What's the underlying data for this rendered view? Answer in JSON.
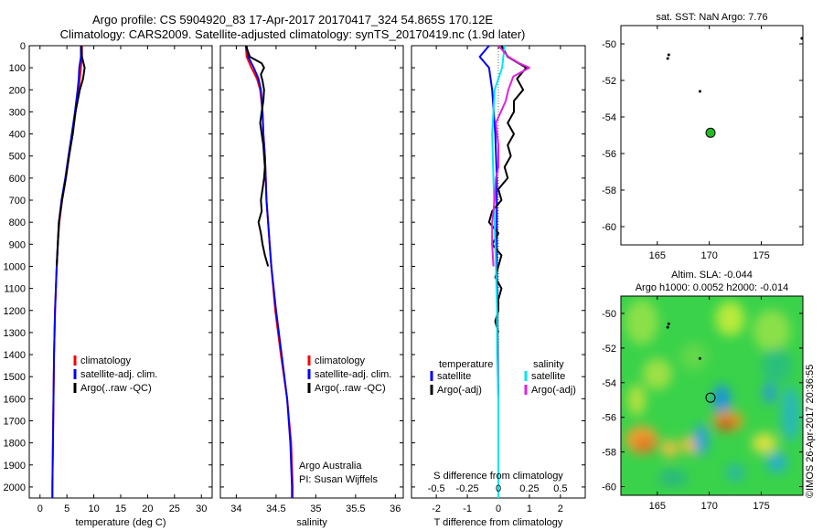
{
  "header": {
    "line1": "Argo profile: CS 5904920_83 17-Apr-2017 20170417_324 54.865S 170.12E",
    "line2": "Climatology: CARS2009. Satellite-adjusted climatology: synTS_20170419.nc (1.9d later)"
  },
  "colors": {
    "climatology": "#ff0000",
    "satellite": "#0000ff",
    "argo": "#000000",
    "salinity_satellite": "#00e5ee",
    "salinity_argo": "#e020e0",
    "float_marker": "#22bb22"
  },
  "chart_data": [
    {
      "type": "line",
      "id": "temperature",
      "xlabel": "temperature (deg C)",
      "xlim": [
        -2,
        32
      ],
      "ylim": [
        2050,
        0
      ],
      "xticks": [
        0,
        5,
        10,
        15,
        20,
        25,
        30
      ],
      "yticks": [
        0,
        100,
        200,
        300,
        400,
        500,
        600,
        700,
        800,
        900,
        1000,
        1100,
        1200,
        1300,
        1400,
        1500,
        1600,
        1700,
        1800,
        1900,
        2000
      ],
      "legend": [
        "climatology",
        "satellite-adj. clim.",
        "Argo(..raw -QC)"
      ],
      "series": [
        {
          "name": "climatology",
          "color": "#ff0000",
          "depth": [
            0,
            50,
            100,
            150,
            200,
            300,
            400,
            500,
            600,
            700,
            800,
            900,
            1000,
            1200,
            1400,
            1600,
            1800,
            2000,
            2050
          ],
          "values": [
            7.8,
            7.8,
            7.6,
            7.4,
            7.2,
            6.6,
            6.0,
            5.4,
            4.8,
            4.1,
            3.6,
            3.3,
            3.1,
            2.8,
            2.6,
            2.5,
            2.4,
            2.3,
            2.3
          ]
        },
        {
          "name": "satellite-adj. clim.",
          "color": "#0000ff",
          "depth": [
            0,
            50,
            100,
            150,
            200,
            300,
            400,
            500,
            600,
            700,
            800,
            900,
            1000,
            1200,
            1400,
            1600,
            1800,
            2000,
            2050
          ],
          "values": [
            7.6,
            7.6,
            7.3,
            7.2,
            7.0,
            6.5,
            5.9,
            5.3,
            4.7,
            4.0,
            3.5,
            3.3,
            3.1,
            2.8,
            2.6,
            2.5,
            2.4,
            2.3,
            2.3
          ]
        },
        {
          "name": "Argo(..raw -QC)",
          "color": "#000000",
          "depth": [
            0,
            50,
            100,
            150,
            200,
            250,
            300,
            400,
            500,
            600,
            700,
            800,
            900,
            1000
          ],
          "values": [
            7.7,
            7.8,
            8.3,
            8.0,
            7.4,
            7.0,
            6.6,
            6.1,
            5.4,
            4.8,
            4.1,
            3.5,
            3.3,
            3.1
          ]
        }
      ]
    },
    {
      "type": "line",
      "id": "salinity",
      "xlabel": "salinity",
      "xlim": [
        33.8,
        36.1
      ],
      "ylim": [
        2050,
        0
      ],
      "xticks": [
        34,
        34.5,
        35,
        35.5,
        36
      ],
      "legend": [
        "climatology",
        "satellite-adj. clim.",
        "Argo(..raw -QC)"
      ],
      "annotation": [
        "Argo Australia",
        "PI: Susan Wijffels"
      ],
      "series": [
        {
          "name": "climatology",
          "color": "#ff0000",
          "depth": [
            0,
            50,
            100,
            150,
            200,
            300,
            400,
            500,
            600,
            700,
            800,
            900,
            1000,
            1200,
            1400,
            1600,
            1800,
            2000,
            2050
          ],
          "values": [
            34.12,
            34.13,
            34.19,
            34.26,
            34.3,
            34.33,
            34.34,
            34.36,
            34.37,
            34.38,
            34.4,
            34.42,
            34.44,
            34.49,
            34.56,
            34.64,
            34.69,
            34.71,
            34.71
          ]
        },
        {
          "name": "satellite-adj. clim.",
          "color": "#0000ff",
          "depth": [
            0,
            50,
            100,
            150,
            200,
            300,
            400,
            500,
            600,
            700,
            800,
            900,
            1000,
            1200,
            1400,
            1600,
            1800,
            2000,
            2050
          ],
          "values": [
            34.13,
            34.15,
            34.22,
            34.28,
            34.31,
            34.33,
            34.34,
            34.36,
            34.37,
            34.38,
            34.4,
            34.42,
            34.44,
            34.5,
            34.57,
            34.64,
            34.68,
            34.7,
            34.7
          ]
        },
        {
          "name": "Argo(..raw -QC)",
          "color": "#000000",
          "depth": [
            0,
            50,
            80,
            100,
            130,
            160,
            200,
            250,
            300,
            350,
            400,
            450,
            500,
            550,
            600,
            650,
            700,
            750,
            800,
            850,
            900,
            950,
            1000
          ],
          "values": [
            34.12,
            34.17,
            34.32,
            34.35,
            34.31,
            34.33,
            34.35,
            34.34,
            34.32,
            34.3,
            34.32,
            34.34,
            34.35,
            34.36,
            34.35,
            34.33,
            34.31,
            34.32,
            34.28,
            34.31,
            34.33,
            34.36,
            34.4
          ]
        }
      ]
    },
    {
      "type": "line",
      "id": "difference",
      "xlabel": "T difference from climatology",
      "xlabel_top": "S difference from climatology",
      "xlim": [
        -2.8,
        2.8
      ],
      "ylim": [
        2050,
        0
      ],
      "xticks": [
        -2,
        -1,
        0,
        1,
        2
      ],
      "xticks_salinity": [
        "-0.5",
        "-0.25",
        "0",
        "0.25",
        "0.5"
      ],
      "legend_titles": [
        "temperature",
        "salinity"
      ],
      "legend": [
        "satellite",
        "Argo(-adj)",
        "satellite",
        "Argo(-adj)"
      ],
      "series": [
        {
          "name": "satellite",
          "group": "temperature",
          "color": "#0000ff",
          "depth": [
            0,
            50,
            100,
            200,
            300,
            400,
            600,
            800,
            1000,
            1200,
            1400,
            1600,
            1800,
            2000,
            2050
          ],
          "values": [
            -0.3,
            -0.6,
            -0.3,
            -0.2,
            -0.15,
            -0.1,
            -0.05,
            -0.05,
            -0.05,
            -0.03,
            -0.02,
            0,
            0,
            0,
            0
          ]
        },
        {
          "name": "Argo(-adj)",
          "group": "temperature",
          "color": "#000000",
          "depth": [
            0,
            50,
            100,
            150,
            200,
            250,
            300,
            350,
            400,
            450,
            500,
            550,
            600,
            650,
            700,
            750,
            800,
            850,
            900,
            950,
            1000,
            1050,
            1100,
            1150,
            1200,
            1250,
            1300
          ],
          "values": [
            0.1,
            0.3,
            0.9,
            0.6,
            0.8,
            0.5,
            0.5,
            0.3,
            0.5,
            0.3,
            0.4,
            0.2,
            0.3,
            0.0,
            0.1,
            -0.2,
            -0.3,
            0.0,
            -0.2,
            0.1,
            0.0,
            -0.1,
            0.1,
            0.0,
            0.0,
            -0.1,
            0.0
          ]
        },
        {
          "name": "satellite",
          "group": "salinity",
          "color": "#00e5ee",
          "depth": [
            0,
            100,
            200,
            300,
            400,
            600,
            800,
            1000,
            1200,
            1400,
            1600,
            1800,
            2000,
            2050
          ],
          "values": [
            0.05,
            0.03,
            -0.03,
            -0.04,
            -0.05,
            -0.04,
            -0.03,
            -0.02,
            -0.01,
            -0.01,
            0,
            0,
            0,
            0
          ]
        },
        {
          "name": "Argo(-adj)",
          "group": "salinity",
          "color": "#e020e0",
          "depth": [
            0,
            50,
            80,
            100,
            140,
            200,
            250,
            300,
            350,
            400,
            450,
            500,
            550,
            600,
            700,
            800,
            900,
            1000
          ],
          "values": [
            0.0,
            0.08,
            0.17,
            0.25,
            0.12,
            0.08,
            0.06,
            0.02,
            -0.02,
            -0.01,
            0.0,
            0.0,
            0.0,
            -0.02,
            -0.03,
            -0.05,
            -0.05,
            -0.04
          ]
        }
      ]
    },
    {
      "type": "scatter",
      "id": "sst-map",
      "title": "sat. SST: NaN Argo: 7.76",
      "xlim": [
        161.5,
        179
      ],
      "ylim": [
        -61,
        -49
      ],
      "xticks": [
        165,
        170,
        175
      ],
      "yticks": [
        -50,
        -52,
        -54,
        -56,
        -58,
        -60
      ],
      "points": [
        {
          "x": 166.0,
          "y": -50.8,
          "kind": "previous-profile"
        },
        {
          "x": 166.1,
          "y": -50.6,
          "kind": "previous-profile"
        },
        {
          "x": 169.1,
          "y": -52.6,
          "kind": "previous-profile"
        },
        {
          "x": 178.9,
          "y": -49.7,
          "kind": "previous-profile"
        },
        {
          "x": 170.12,
          "y": -54.865,
          "kind": "current-profile"
        }
      ]
    },
    {
      "type": "heatmap",
      "id": "sla-map",
      "title": [
        "Altim. SLA: -0.044",
        "Argo h1000: 0.0052 h2000: -0.014"
      ],
      "xlim": [
        161.5,
        179
      ],
      "ylim": [
        -60.5,
        -49
      ],
      "xticks": [
        165,
        170,
        175
      ],
      "yticks": [
        -50,
        -52,
        -54,
        -56,
        -58,
        -60
      ],
      "points": [
        {
          "x": 166.0,
          "y": -50.8,
          "kind": "previous-profile"
        },
        {
          "x": 166.1,
          "y": -50.6,
          "kind": "previous-profile"
        },
        {
          "x": 169.1,
          "y": -52.6,
          "kind": "previous-profile"
        },
        {
          "x": 170.12,
          "y": -54.865,
          "kind": "current-profile"
        }
      ]
    }
  ],
  "watermark": "©IMOS 26-Apr-2017 20:36:55"
}
